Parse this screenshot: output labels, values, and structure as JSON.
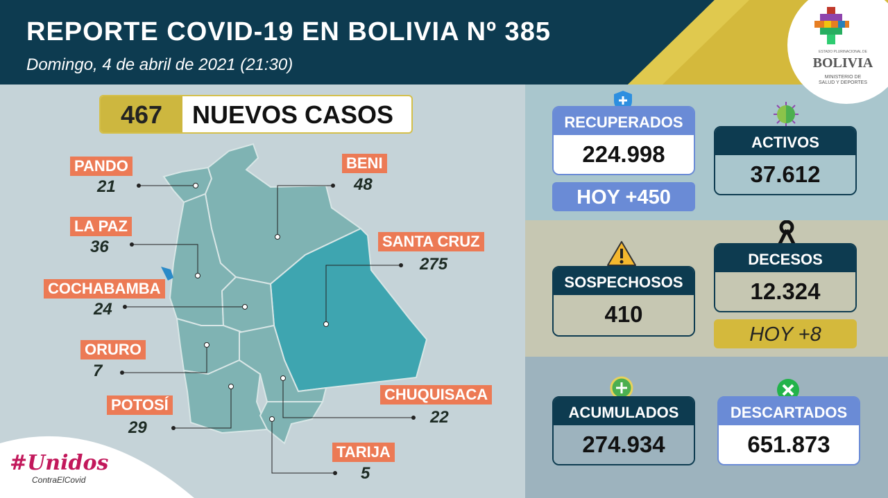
{
  "header": {
    "title": "REPORTE COVID-19 EN BOLIVIA Nº 385",
    "subtitle": "Domingo, 4 de abril de 2021 (21:30)"
  },
  "logo": {
    "line1": "ESTADO PLURINACIONAL DE",
    "line2": "BOLIVIA",
    "line3": "MINISTERIO DE",
    "line4": "SALUD Y DEPORTES"
  },
  "nuevos_casos": {
    "value": "467",
    "label": "NUEVOS CASOS"
  },
  "departments": [
    {
      "name": "PANDO",
      "value": "21"
    },
    {
      "name": "BENI",
      "value": "48"
    },
    {
      "name": "LA PAZ",
      "value": "36"
    },
    {
      "name": "SANTA CRUZ",
      "value": "275"
    },
    {
      "name": "COCHABAMBA",
      "value": "24"
    },
    {
      "name": "ORURO",
      "value": "7"
    },
    {
      "name": "POTOSÍ",
      "value": "29"
    },
    {
      "name": "CHUQUISACA",
      "value": "22"
    },
    {
      "name": "TARIJA",
      "value": "5"
    }
  ],
  "stats": {
    "recuperados": {
      "label": "RECUPERADOS",
      "value": "224.998",
      "today": "HOY +450",
      "icon": "shield-plus-icon"
    },
    "activos": {
      "label": "ACTIVOS",
      "value": "37.612",
      "icon": "virus-icon"
    },
    "sospechosos": {
      "label": "SOSPECHOSOS",
      "value": "410",
      "icon": "warning-icon"
    },
    "decesos": {
      "label": "DECESOS",
      "value": "12.324",
      "today": "HOY +8",
      "icon": "mourning-ribbon-icon"
    },
    "acumulados": {
      "label": "ACUMULADOS",
      "value": "274.934",
      "icon": "plus-circle-icon"
    },
    "descartados": {
      "label": "DESCARTADOS",
      "value": "651.873",
      "icon": "x-circle-icon"
    }
  },
  "campaign": {
    "line1": "#Unidos",
    "line2": "ContraElCovid"
  },
  "colors": {
    "header": "#0d3b50",
    "gold": "#d4b93c",
    "dept_label": "#ec7a55",
    "santa_cruz": "#3ea5b0",
    "map": "#7fb3b3",
    "recuperados": "#6a8bd6",
    "descartados": "#6a8bd6",
    "dark": "#0d3b50"
  }
}
